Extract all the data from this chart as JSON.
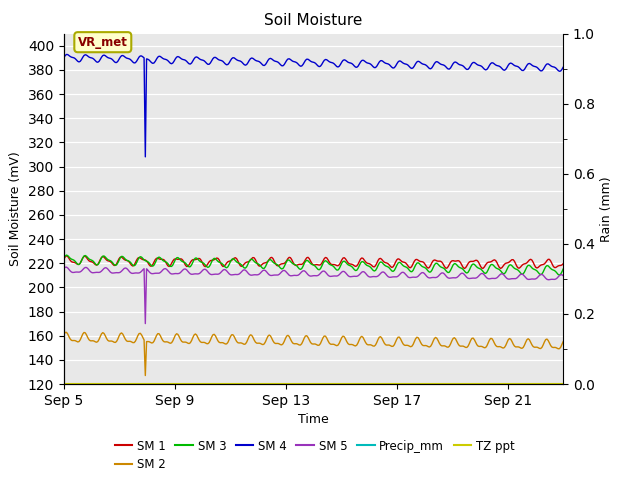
{
  "title": "Soil Moisture",
  "ylabel_left": "Soil Moisture (mV)",
  "ylabel_right": "Rain (mm)",
  "xlabel": "Time",
  "ylim_left": [
    120,
    410
  ],
  "ylim_right": [
    0.0,
    1.0
  ],
  "yticks_left": [
    120,
    140,
    160,
    180,
    200,
    220,
    240,
    260,
    280,
    300,
    320,
    340,
    360,
    380,
    400
  ],
  "yticks_right": [
    0.0,
    0.2,
    0.4,
    0.6,
    0.8,
    1.0
  ],
  "xtick_labels": [
    "Sep 5",
    "Sep 9",
    "Sep 13",
    "Sep 17",
    "Sep 21"
  ],
  "bg_color": "#e8e8e8",
  "fig_bg": "#ffffff",
  "annotation_text": "VR_met",
  "annotation_bg": "#ffffcc",
  "annotation_border": "#aaaa00",
  "annotation_color": "#880000",
  "colors": {
    "SM1": "#cc0000",
    "SM2": "#cc8800",
    "SM3": "#00bb00",
    "SM4": "#0000cc",
    "SM5": "#9933bb",
    "Precip_mm": "#00bbbb",
    "TZ_ppt": "#cccc00"
  },
  "n_points": 400,
  "spike_index": 65
}
